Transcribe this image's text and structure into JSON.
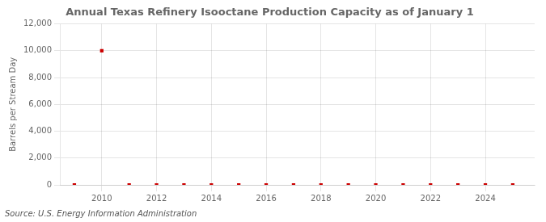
{
  "chart_data": {
    "type": "scatter",
    "title": "Annual Texas Refinery Isooctane Production Capacity as of January 1",
    "ylabel": "Barrels per Stream Day",
    "annotations": [
      "Source: U.S. Energy Information Administration"
    ],
    "x": [
      2009,
      2010,
      2011,
      2012,
      2013,
      2014,
      2015,
      2016,
      2017,
      2018,
      2019,
      2020,
      2021,
      2022,
      2023,
      2024,
      2025
    ],
    "values": [
      0,
      10000,
      0,
      0,
      0,
      0,
      0,
      0,
      0,
      0,
      0,
      0,
      0,
      0,
      0,
      0,
      0
    ],
    "color": "#cc0000",
    "marker": "square",
    "xlim": [
      2008.5,
      2025.8
    ],
    "ylim": [
      0,
      12000
    ],
    "xticks": [
      2010,
      2012,
      2014,
      2016,
      2018,
      2020,
      2022,
      2024
    ],
    "yticks": [
      0,
      {
        "value": 2000,
        "label": "2,000"
      },
      {
        "value": 4000,
        "label": "4,000"
      },
      {
        "value": 6000,
        "label": "6,000"
      },
      {
        "value": 8000,
        "label": "8,000"
      },
      {
        "value": 10000,
        "label": "10,000"
      },
      {
        "value": 12000,
        "label": "12,000"
      }
    ],
    "grid": true
  }
}
